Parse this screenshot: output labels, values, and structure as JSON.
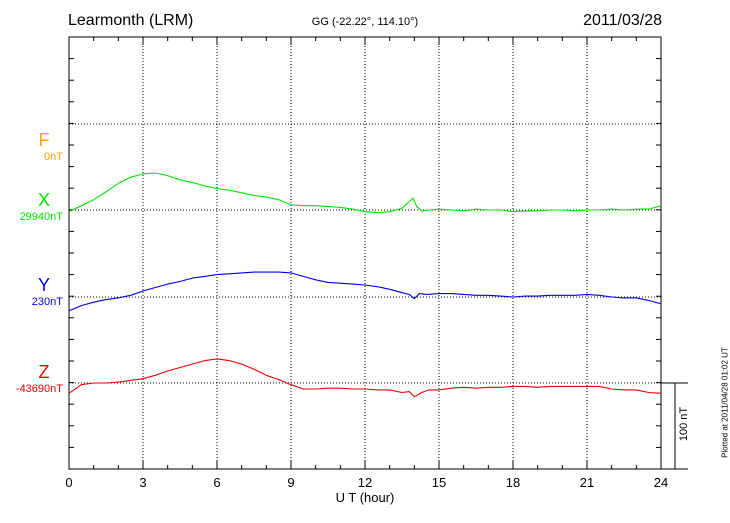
{
  "header": {
    "station": "Learmonth (LRM)",
    "coords": "GG (-22.22°, 114.10°)",
    "date": "2011/03/28"
  },
  "side": {
    "scale_label": "100 nT",
    "plotted": "Plotted at 2011/04/28 01:02 UT"
  },
  "colors": {
    "F": "#ffa500",
    "X": "#00e600",
    "Y": "#0000dd",
    "Z": "#ee0000"
  },
  "chart_data": {
    "type": "line",
    "xlabel": "U T (hour)",
    "xlim": [
      0,
      24
    ],
    "xticks": [
      0,
      3,
      6,
      9,
      12,
      15,
      18,
      21,
      24
    ],
    "xtick_labels": [
      "0",
      "3",
      "6",
      "9",
      "12",
      "15",
      "18",
      "21",
      "24"
    ],
    "units": "nT",
    "scale_bar_nT": 100,
    "series": [
      {
        "name": "F",
        "baseline_label": "0nT",
        "x": [],
        "values": []
      },
      {
        "name": "X",
        "baseline_label": "29940nT",
        "x": [
          0,
          0.5,
          1,
          1.5,
          2,
          2.5,
          3,
          3.5,
          4,
          4.5,
          5,
          5.5,
          6,
          6.5,
          7,
          7.5,
          8,
          8.5,
          9,
          9.5,
          10,
          10.5,
          11,
          11.5,
          12,
          12.5,
          13,
          13.5,
          13.8,
          13.95,
          14.1,
          14.3,
          14.6,
          15,
          15.5,
          16,
          16.5,
          17,
          17.5,
          18,
          18.5,
          19,
          19.5,
          20,
          20.5,
          21,
          21.5,
          22,
          22.5,
          23,
          23.5,
          24
        ],
        "values": [
          -2,
          5,
          12,
          21,
          31,
          38,
          42,
          43,
          40,
          35,
          32,
          28,
          25,
          23,
          20,
          17,
          15,
          12,
          6,
          5,
          5,
          4,
          3,
          1,
          -2,
          -3,
          -2,
          2,
          10,
          14,
          4,
          -1,
          0,
          1,
          0,
          -1,
          1,
          0,
          0,
          -2,
          -1,
          -1,
          0,
          0,
          -1,
          0,
          0,
          1,
          0,
          1,
          1,
          5
        ]
      },
      {
        "name": "Y",
        "baseline_label": "230nT",
        "x": [
          0,
          0.5,
          1,
          1.5,
          2,
          2.5,
          3,
          3.5,
          4,
          4.5,
          5,
          5.5,
          6,
          6.5,
          7,
          7.5,
          8,
          8.5,
          9,
          9.5,
          10,
          10.5,
          11,
          11.5,
          12,
          12.5,
          13,
          13.5,
          13.8,
          14,
          14.2,
          14.5,
          15,
          15.5,
          16,
          16.5,
          17,
          17.5,
          18,
          18.5,
          19,
          19.5,
          20,
          20.5,
          21,
          21.5,
          22,
          22.5,
          23,
          23.5,
          24
        ],
        "values": [
          -16,
          -10,
          -6,
          -3,
          -1,
          2,
          7,
          11,
          15,
          18,
          22,
          24,
          26,
          27,
          28,
          29,
          29,
          29,
          28,
          24,
          20,
          17,
          16,
          15,
          14,
          12,
          9,
          5,
          3,
          -2,
          4,
          3,
          4,
          4,
          3,
          2,
          2,
          1,
          0,
          1,
          1,
          2,
          2,
          2,
          3,
          2,
          0,
          -1,
          -1,
          -4,
          -8
        ]
      },
      {
        "name": "Z",
        "baseline_label": "-43690nT",
        "x": [
          0,
          0.5,
          1,
          1.5,
          2,
          2.5,
          3,
          3.5,
          4,
          4.5,
          5,
          5.5,
          6,
          6.5,
          7,
          7.5,
          8,
          8.5,
          9,
          9.5,
          10,
          10.5,
          11,
          11.5,
          12,
          12.5,
          13,
          13.5,
          13.8,
          14,
          14.3,
          14.6,
          15,
          15.5,
          16,
          16.5,
          17,
          17.5,
          18,
          18.5,
          19,
          19.5,
          20,
          20.5,
          21,
          21.5,
          22,
          22.5,
          23,
          23.5,
          24
        ],
        "values": [
          -12,
          -2,
          0,
          0,
          1,
          3,
          5,
          9,
          14,
          18,
          22,
          26,
          28,
          26,
          22,
          16,
          9,
          4,
          -2,
          -7,
          -7,
          -6,
          -6,
          -7,
          -7,
          -8,
          -8,
          -11,
          -10,
          -16,
          -11,
          -8,
          -8,
          -6,
          -5,
          -6,
          -5,
          -5,
          -4,
          -4,
          -5,
          -4,
          -4,
          -4,
          -4,
          -4,
          -7,
          -8,
          -8,
          -11,
          -12
        ]
      }
    ]
  }
}
